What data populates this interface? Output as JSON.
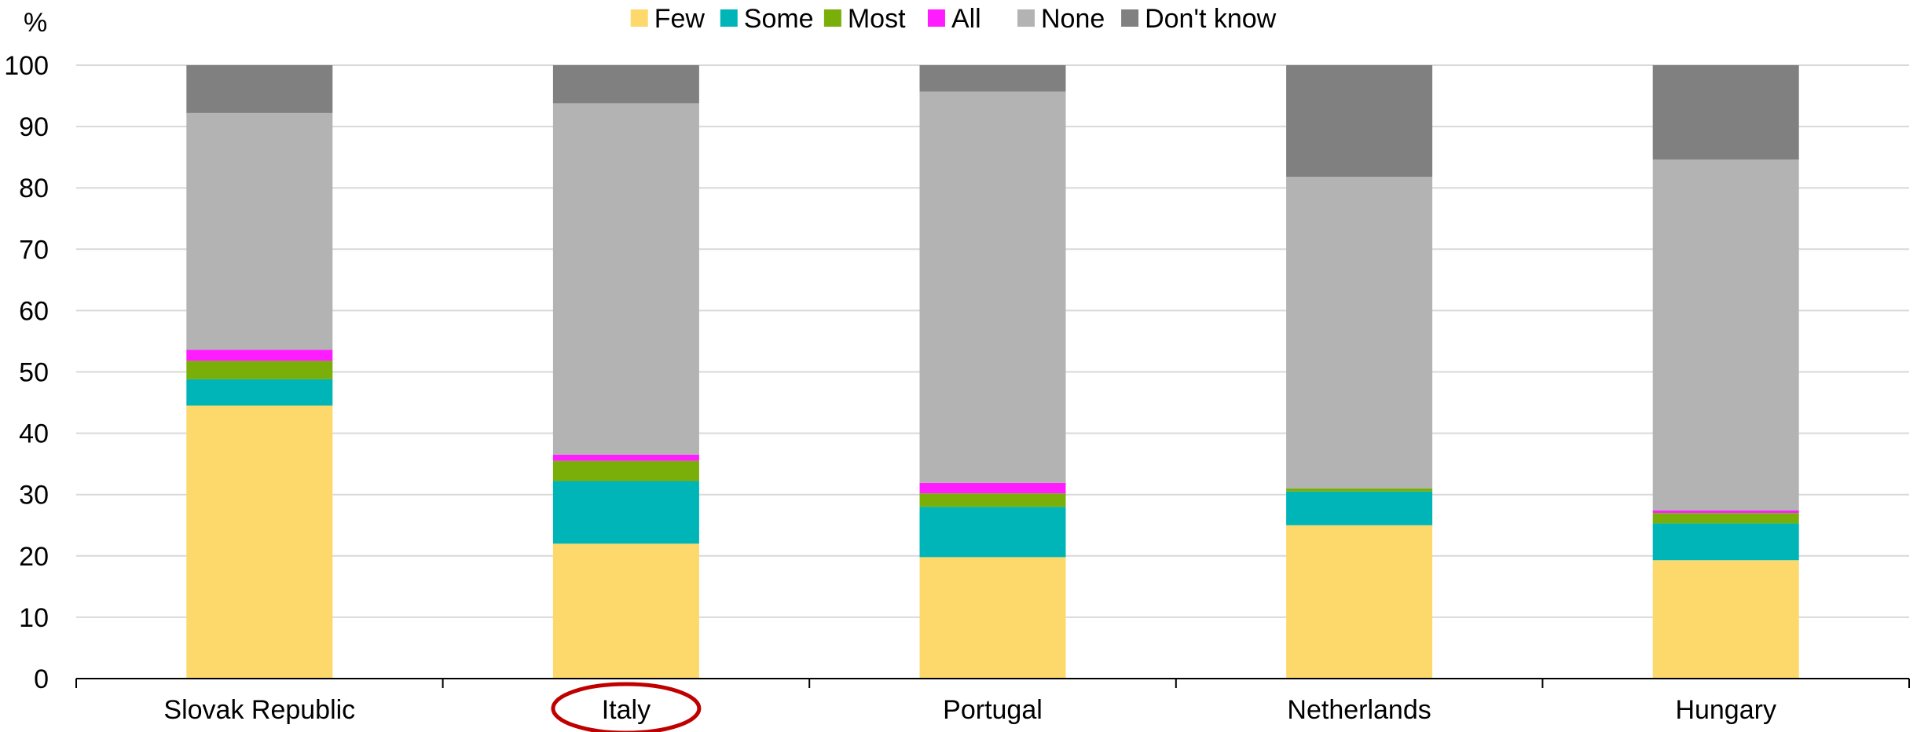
{
  "chart_data": {
    "type": "bar",
    "stacked": true,
    "ylabel": "%",
    "ylim": [
      0,
      100
    ],
    "yticks": [
      0,
      10,
      20,
      30,
      40,
      50,
      60,
      70,
      80,
      90,
      100
    ],
    "grid": true,
    "legend_position": "top-center",
    "categories": [
      "Slovak Republic",
      "Italy",
      "Portugal",
      "Netherlands",
      "Hungary"
    ],
    "highlighted_category": "Italy",
    "highlight_color": "#c00000",
    "series": [
      {
        "name": "Few",
        "color": "#fdd86b",
        "values": [
          44.5,
          22.0,
          19.8,
          25.0,
          19.3
        ]
      },
      {
        "name": "Some",
        "color": "#00b5b8",
        "values": [
          4.3,
          10.2,
          8.2,
          5.5,
          6.0
        ]
      },
      {
        "name": "Most",
        "color": "#7aaf09",
        "values": [
          3.0,
          3.3,
          2.2,
          0.5,
          1.7
        ]
      },
      {
        "name": "All",
        "color": "#ff1cff",
        "values": [
          1.8,
          1.0,
          1.7,
          0.0,
          0.4
        ]
      },
      {
        "name": "None",
        "color": "#b3b3b3",
        "values": [
          38.6,
          57.3,
          63.8,
          50.8,
          57.2
        ]
      },
      {
        "name": "Don't know",
        "color": "#808080",
        "values": [
          7.8,
          6.2,
          4.3,
          18.2,
          15.4
        ]
      }
    ]
  }
}
